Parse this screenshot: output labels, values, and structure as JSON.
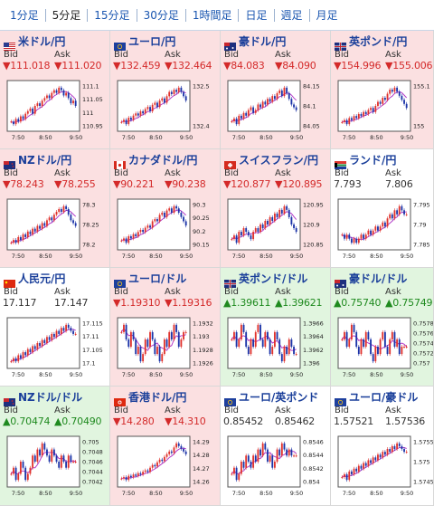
{
  "tabs": [
    "1分足",
    "5分足",
    "15分足",
    "30分足",
    "1時間足",
    "日足",
    "週足",
    "月足"
  ],
  "active_tab": 1,
  "labels": {
    "bid": "Bid",
    "ask": "Ask"
  },
  "colors": {
    "down_bg": "#fbe0e1",
    "up_bg": "#e1f5df",
    "candle_up": "#e0322d",
    "candle_down": "#1c34a8",
    "ma_line": "#b43cc8"
  },
  "pairs": [
    {
      "name": "米ドル/円",
      "flag": "us-flag",
      "trend": "down",
      "bid": "▼111.018",
      "ask": "▼111.020",
      "chart": {
        "y_ticks": [
          "111.1",
          "111.05",
          "111",
          "110.95"
        ],
        "x_ticks": [
          "7:50",
          "8:50",
          "9:50"
        ],
        "closes": [
          110.96,
          110.95,
          110.97,
          110.96,
          110.98,
          110.97,
          110.99,
          111.0,
          111.01,
          110.99,
          111.02,
          111.03,
          111.02,
          111.04,
          111.05,
          111.06,
          111.05,
          111.07,
          111.08,
          111.07,
          111.09,
          111.08,
          111.06,
          111.07,
          111.05,
          111.03,
          111.04,
          111.02
        ]
      }
    },
    {
      "name": "ユーロ/円",
      "flag": "eu-flag",
      "trend": "down",
      "bid": "▼132.459",
      "ask": "▼132.464",
      "chart": {
        "y_ticks": [
          "132.5",
          "132.4"
        ],
        "x_ticks": [
          "7:50",
          "8:50",
          "9:50"
        ],
        "closes": [
          132.36,
          132.37,
          132.35,
          132.38,
          132.37,
          132.39,
          132.4,
          132.39,
          132.41,
          132.4,
          132.42,
          132.43,
          132.41,
          132.44,
          132.45,
          132.43,
          132.46,
          132.47,
          132.45,
          132.48,
          132.5,
          132.49,
          132.51,
          132.5,
          132.52,
          132.5,
          132.48,
          132.46
        ]
      }
    },
    {
      "name": "豪ドル/円",
      "flag": "au-flag",
      "trend": "down",
      "bid": "▼84.083",
      "ask": "▼84.090",
      "chart": {
        "y_ticks": [
          "84.15",
          "84.1",
          "84.05"
        ],
        "x_ticks": [
          "7:50",
          "8:50",
          "9:50"
        ],
        "closes": [
          84.04,
          84.05,
          84.03,
          84.06,
          84.05,
          84.07,
          84.06,
          84.08,
          84.09,
          84.07,
          84.08,
          84.1,
          84.09,
          84.11,
          84.1,
          84.12,
          84.11,
          84.13,
          84.12,
          84.14,
          84.15,
          84.13,
          84.16,
          84.14,
          84.12,
          84.1,
          84.09,
          84.08
        ]
      }
    },
    {
      "name": "英ポンド/円",
      "flag": "uk-flag",
      "trend": "down",
      "bid": "▼154.996",
      "ask": "▼155.006",
      "chart": {
        "y_ticks": [
          "155.1",
          "155"
        ],
        "x_ticks": [
          "7:50",
          "8:50",
          "9:50"
        ],
        "closes": [
          154.93,
          154.94,
          154.92,
          154.95,
          154.94,
          154.96,
          154.95,
          154.97,
          154.96,
          154.98,
          154.97,
          154.99,
          155.0,
          154.98,
          155.01,
          155.03,
          155.02,
          155.05,
          155.04,
          155.07,
          155.09,
          155.08,
          155.1,
          155.08,
          155.06,
          155.04,
          155.02,
          155.0
        ]
      }
    },
    {
      "name": "NZドル/円",
      "flag": "nz-flag",
      "trend": "down",
      "bid": "▼78.243",
      "ask": "▼78.255",
      "chart": {
        "y_ticks": [
          "78.3",
          "78.25",
          "78.2"
        ],
        "x_ticks": [
          "7:50",
          "8:50",
          "9:50"
        ],
        "closes": [
          78.19,
          78.2,
          78.19,
          78.21,
          78.2,
          78.22,
          78.21,
          78.23,
          78.22,
          78.24,
          78.23,
          78.25,
          78.24,
          78.26,
          78.25,
          78.27,
          78.28,
          78.27,
          78.29,
          78.3,
          78.31,
          78.3,
          78.32,
          78.31,
          78.29,
          78.27,
          78.26,
          78.25
        ]
      }
    },
    {
      "name": "カナダドル/円",
      "flag": "ca-flag",
      "trend": "down",
      "bid": "▼90.221",
      "ask": "▼90.238",
      "chart": {
        "y_ticks": [
          "90.3",
          "90.25",
          "90.2",
          "90.15"
        ],
        "x_ticks": [
          "7:50",
          "8:50",
          "9:50"
        ],
        "closes": [
          90.15,
          90.16,
          90.14,
          90.17,
          90.16,
          90.18,
          90.17,
          90.19,
          90.2,
          90.19,
          90.21,
          90.22,
          90.21,
          90.24,
          90.25,
          90.24,
          90.27,
          90.28,
          90.26,
          90.29,
          90.3,
          90.28,
          90.31,
          90.3,
          90.28,
          90.26,
          90.24,
          90.22
        ]
      }
    },
    {
      "name": "スイスフラン/円",
      "flag": "ch-flag",
      "trend": "down",
      "bid": "▼120.877",
      "ask": "▼120.895",
      "chart": {
        "y_ticks": [
          "120.95",
          "120.9",
          "120.85"
        ],
        "x_ticks": [
          "7:50",
          "8:50",
          "9:50"
        ],
        "closes": [
          120.86,
          120.87,
          120.85,
          120.88,
          120.87,
          120.89,
          120.88,
          120.87,
          120.86,
          120.88,
          120.89,
          120.88,
          120.9,
          120.89,
          120.91,
          120.9,
          120.92,
          120.91,
          120.93,
          120.92,
          120.94,
          120.93,
          120.95,
          120.94,
          120.92,
          120.9,
          120.89,
          120.88
        ]
      }
    },
    {
      "name": "ランド/円",
      "flag": "za-flag",
      "trend": "flat",
      "bid": "7.793",
      "ask": "7.806",
      "chart": {
        "y_ticks": [
          "7.795",
          "7.79",
          "7.785"
        ],
        "x_ticks": [
          "7:50",
          "8:50",
          "9:50"
        ],
        "closes": [
          7.788,
          7.787,
          7.788,
          7.787,
          7.786,
          7.787,
          7.786,
          7.787,
          7.788,
          7.787,
          7.788,
          7.789,
          7.788,
          7.789,
          7.79,
          7.789,
          7.79,
          7.791,
          7.79,
          7.792,
          7.793,
          7.792,
          7.794,
          7.793,
          7.795,
          7.794,
          7.793,
          7.793
        ]
      }
    },
    {
      "name": "人民元/円",
      "flag": "cn-flag",
      "trend": "flat",
      "bid": "17.117",
      "ask": "17.147",
      "chart": {
        "y_ticks": [
          "17.115",
          "17.11",
          "17.105",
          "17.1"
        ],
        "x_ticks": [
          "7:50",
          "8:50",
          "9:50"
        ],
        "closes": [
          17.108,
          17.109,
          17.108,
          17.11,
          17.109,
          17.111,
          17.11,
          17.112,
          17.111,
          17.113,
          17.112,
          17.114,
          17.113,
          17.115,
          17.114,
          17.116,
          17.115,
          17.117,
          17.116,
          17.118,
          17.117,
          17.119,
          17.118,
          17.12,
          17.119,
          17.118,
          17.117,
          17.117
        ]
      }
    },
    {
      "name": "ユーロ/ドル",
      "flag": "eu-flag",
      "trend": "down",
      "bid": "▼1.19310",
      "ask": "▼1.19316",
      "chart": {
        "y_ticks": [
          "1.1932",
          "1.193",
          "1.1928",
          "1.1926"
        ],
        "x_ticks": [
          "7:50",
          "8:50",
          "9:50"
        ],
        "closes": [
          1.1931,
          1.1932,
          1.193,
          1.1929,
          1.1931,
          1.193,
          1.1928,
          1.1929,
          1.1927,
          1.1928,
          1.193,
          1.1929,
          1.1931,
          1.193,
          1.1928,
          1.1929,
          1.1927,
          1.1928,
          1.193,
          1.1929,
          1.1931,
          1.193,
          1.1932,
          1.1931,
          1.1929,
          1.193,
          1.1931,
          1.1931
        ]
      }
    },
    {
      "name": "英ポンド/ドル",
      "flag": "uk-flag",
      "trend": "up",
      "bid": "▲1.39611",
      "ask": "▲1.39621",
      "chart": {
        "y_ticks": [
          "1.3966",
          "1.3964",
          "1.3962",
          "1.396"
        ],
        "x_ticks": [
          "7:50",
          "8:50",
          "9:50"
        ],
        "closes": [
          1.3963,
          1.3964,
          1.3962,
          1.3963,
          1.3965,
          1.3964,
          1.3962,
          1.3961,
          1.3963,
          1.3962,
          1.3964,
          1.3965,
          1.3963,
          1.3962,
          1.3964,
          1.3963,
          1.3961,
          1.3962,
          1.3964,
          1.3963,
          1.3961,
          1.396,
          1.3962,
          1.3961,
          1.3963,
          1.3962,
          1.3961,
          1.3961
        ]
      }
    },
    {
      "name": "豪ドル/ドル",
      "flag": "au-flag",
      "trend": "up",
      "bid": "▲0.75740",
      "ask": "▲0.75749",
      "chart": {
        "y_ticks": [
          "0.7578",
          "0.7576",
          "0.7574",
          "0.7572",
          "0.757"
        ],
        "x_ticks": [
          "7:50",
          "8:50",
          "9:50"
        ],
        "closes": [
          0.7575,
          0.7576,
          0.7574,
          0.7575,
          0.7577,
          0.7576,
          0.7574,
          0.7573,
          0.7575,
          0.7574,
          0.7576,
          0.7575,
          0.7573,
          0.7572,
          0.7574,
          0.7573,
          0.7575,
          0.7576,
          0.7574,
          0.7573,
          0.7575,
          0.7576,
          0.7574,
          0.7575,
          0.7573,
          0.7574,
          0.7574,
          0.7574
        ]
      }
    },
    {
      "name": "NZドル/ドル",
      "flag": "nz-flag",
      "trend": "up",
      "bid": "▲0.70474",
      "ask": "▲0.70490",
      "chart": {
        "y_ticks": [
          "0.705",
          "0.7048",
          "0.7046",
          "0.7044",
          "0.7042"
        ],
        "x_ticks": [
          "7:50",
          "8:50",
          "9:50"
        ],
        "closes": [
          0.7045,
          0.7046,
          0.7044,
          0.7045,
          0.7047,
          0.7046,
          0.7044,
          0.7045,
          0.7046,
          0.7048,
          0.7047,
          0.7049,
          0.7048,
          0.705,
          0.7049,
          0.7048,
          0.7047,
          0.7049,
          0.7048,
          0.7047,
          0.7046,
          0.7048,
          0.7047,
          0.7046,
          0.7048,
          0.7047,
          0.7047,
          0.7047
        ]
      }
    },
    {
      "name": "香港ドル/円",
      "flag": "hk-flag",
      "trend": "down",
      "bid": "▼14.280",
      "ask": "▼14.310",
      "chart": {
        "y_ticks": [
          "14.29",
          "14.28",
          "14.27",
          "14.26"
        ],
        "x_ticks": [
          "7:50",
          "8:50",
          "9:50"
        ],
        "closes": [
          14.262,
          14.263,
          14.261,
          14.264,
          14.263,
          14.265,
          14.264,
          14.266,
          14.265,
          14.267,
          14.268,
          14.267,
          14.27,
          14.272,
          14.271,
          14.274,
          14.276,
          14.275,
          14.278,
          14.28,
          14.282,
          14.281,
          14.285,
          14.288,
          14.286,
          14.284,
          14.282,
          14.28
        ]
      }
    },
    {
      "name": "ユーロ/英ポンド",
      "flag": "eu-flag",
      "trend": "flat",
      "bid": "0.85452",
      "ask": "0.85462",
      "chart": {
        "y_ticks": [
          "0.8546",
          "0.8544",
          "0.8542",
          "0.854"
        ],
        "x_ticks": [
          "7:50",
          "8:50",
          "9:50"
        ],
        "closes": [
          0.8542,
          0.8543,
          0.8541,
          0.8542,
          0.8544,
          0.8543,
          0.8545,
          0.8544,
          0.8543,
          0.8545,
          0.8544,
          0.8546,
          0.8545,
          0.8547,
          0.8546,
          0.8544,
          0.8545,
          0.8543,
          0.8544,
          0.8546,
          0.8545,
          0.8547,
          0.8546,
          0.8545,
          0.8546,
          0.8545,
          0.8545,
          0.8545
        ]
      }
    },
    {
      "name": "ユーロ/豪ドル",
      "flag": "eu-flag",
      "trend": "flat",
      "bid": "1.57521",
      "ask": "1.57536",
      "chart": {
        "y_ticks": [
          "1.5755",
          "1.575",
          "1.5745"
        ],
        "x_ticks": [
          "7:50",
          "8:50",
          "9:50"
        ],
        "closes": [
          1.5743,
          1.5744,
          1.5742,
          1.5745,
          1.5744,
          1.5746,
          1.5745,
          1.5747,
          1.5746,
          1.5748,
          1.5747,
          1.5749,
          1.5748,
          1.575,
          1.5749,
          1.5751,
          1.575,
          1.5752,
          1.5751,
          1.5753,
          1.5752,
          1.5754,
          1.5753,
          1.5755,
          1.5754,
          1.5753,
          1.5752,
          1.5752
        ]
      }
    }
  ]
}
